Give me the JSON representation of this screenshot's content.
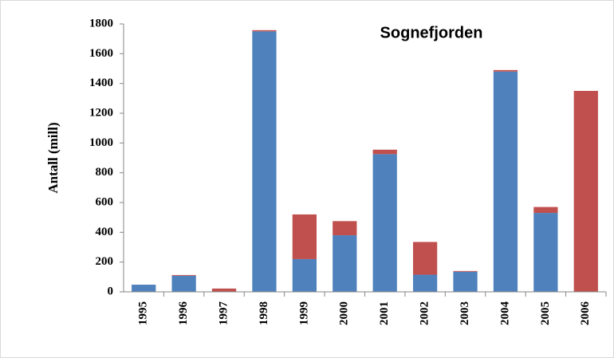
{
  "chart_data": {
    "type": "stacked-bar",
    "title": "Sognefjorden",
    "ylabel": "Antall (mill)",
    "categories": [
      "1995",
      "1996",
      "1997",
      "1998",
      "1999",
      "2000",
      "2001",
      "2002",
      "2003",
      "2004",
      "2005",
      "2006"
    ],
    "series": [
      {
        "color": "#4f81bd",
        "values": [
          48,
          108,
          0,
          1750,
          220,
          380,
          925,
          115,
          135,
          1480,
          530,
          0
        ]
      },
      {
        "color": "#c0504d",
        "values": [
          0,
          5,
          22,
          8,
          300,
          95,
          30,
          220,
          5,
          10,
          40,
          1350
        ]
      }
    ],
    "ylim": [
      0,
      1800
    ],
    "yticks": [
      0,
      200,
      400,
      600,
      800,
      1000,
      1200,
      1400,
      1600,
      1800
    ],
    "grid": false
  }
}
